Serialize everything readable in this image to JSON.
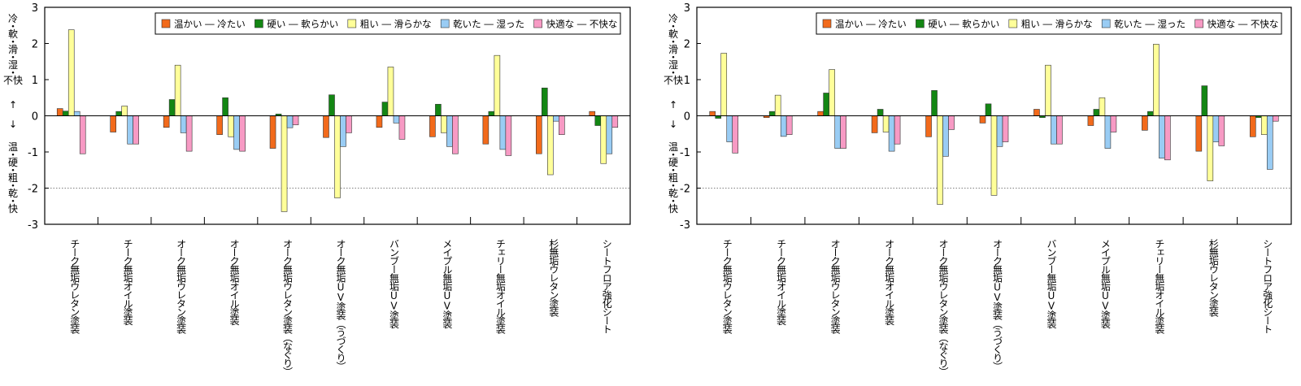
{
  "ylabel_top": [
    "冷",
    "・",
    "軟",
    "・",
    "滑",
    "・",
    "湿",
    "・",
    "不快"
  ],
  "ylabel_mid": [
    "↑",
    "",
    "↓"
  ],
  "ylabel_bottom": [
    "温",
    "・",
    "硬",
    "・",
    "粗",
    "・",
    "乾",
    "・",
    "快"
  ],
  "legend": [
    {
      "label": "温かい ― 冷たい",
      "color": "#f26a1b"
    },
    {
      "label": "硬い ― 軟らかい",
      "color": "#138613"
    },
    {
      "label": "粗い ― 滑らかな",
      "color": "#ffff99"
    },
    {
      "label": "乾いた ― 湿った",
      "color": "#99ccf4"
    },
    {
      "label": "快適な ― 不快な",
      "color": "#f79ac4"
    }
  ],
  "chart_data": [
    {
      "type": "bar",
      "ylim": [
        -3,
        3
      ],
      "yticks": [
        "3",
        "2",
        "1",
        "0",
        "-1",
        "-2",
        "-3"
      ],
      "reference_line": -2,
      "legend_position": "top-right",
      "categories": [
        "チーク無垢ウレタン塗装",
        "チーク無垢オイル塗装",
        "オーク無垢ウレタン塗装",
        "オーク無垢オイル塗装",
        "オーク無垢ウレタン塗装（なぐり）",
        "オーク無垢UV塗装（うづくり）",
        "バンブー無垢UV塗装",
        "メイプル無垢UV塗装",
        "チェリー無垢オイル塗装",
        "杉無垢ウレタン塗装",
        "シートフロア強化シート"
      ],
      "series": [
        {
          "name": "温かい ― 冷たい",
          "values": [
            0.2,
            -0.45,
            -0.32,
            -0.52,
            -0.9,
            -0.6,
            -0.32,
            -0.58,
            -0.78,
            -1.05,
            0.12
          ]
        },
        {
          "name": "硬い ― 軟らかい",
          "values": [
            0.13,
            0.12,
            0.45,
            0.5,
            0.05,
            0.58,
            0.38,
            0.32,
            0.12,
            0.77,
            -0.27
          ]
        },
        {
          "name": "粗い ― 滑らかな",
          "values": [
            2.38,
            0.27,
            1.4,
            -0.58,
            -2.65,
            -2.27,
            1.35,
            -0.47,
            1.67,
            -1.63,
            -1.32
          ]
        },
        {
          "name": "乾いた ― 湿った",
          "values": [
            0.12,
            -0.78,
            -0.47,
            -0.93,
            -0.33,
            -0.85,
            -0.2,
            -0.85,
            -0.93,
            -0.15,
            -1.05
          ]
        },
        {
          "name": "快適な ― 不快な",
          "values": [
            -1.05,
            -0.78,
            -0.98,
            -0.98,
            -0.25,
            -0.47,
            -0.65,
            -1.05,
            -1.1,
            -0.52,
            -0.32
          ]
        }
      ]
    },
    {
      "type": "bar",
      "ylim": [
        -3,
        3
      ],
      "yticks": [
        "3",
        "2",
        "1",
        "0",
        "-1",
        "-2",
        "-3"
      ],
      "reference_line": -2,
      "legend_position": "top-right",
      "categories": [
        "チーク無垢ウレタン塗装",
        "チーク無垢オイル塗装",
        "オーク無垢ウレタン塗装",
        "オーク無垢オイル塗装",
        "オーク無垢ウレタン塗装（なぐり）",
        "オーク無垢UV塗装（うづくり）",
        "バンブー無垢UV塗装",
        "メイプル無垢UV塗装",
        "チェリー無垢オイル塗装",
        "杉無垢ウレタン塗装",
        "シートフロア強化シート"
      ],
      "series": [
        {
          "name": "温かい ― 冷たい",
          "values": [
            0.12,
            -0.05,
            0.12,
            -0.47,
            -0.58,
            -0.2,
            0.18,
            -0.27,
            -0.4,
            -0.98,
            -0.58
          ]
        },
        {
          "name": "硬い ― 軟らかい",
          "values": [
            -0.07,
            0.12,
            0.63,
            0.18,
            0.7,
            0.33,
            -0.05,
            0.18,
            0.12,
            0.83,
            -0.05
          ]
        },
        {
          "name": "粗い ― 滑らかな",
          "values": [
            1.73,
            0.57,
            1.28,
            -0.45,
            -2.45,
            -2.2,
            1.4,
            0.5,
            1.98,
            -1.8,
            -0.52
          ]
        },
        {
          "name": "乾いた ― 湿った",
          "values": [
            -0.72,
            -0.57,
            -0.9,
            -0.98,
            -1.12,
            -0.85,
            -0.78,
            -0.9,
            -1.17,
            -0.72,
            -1.48
          ]
        },
        {
          "name": "快適な ― 不快な",
          "values": [
            -1.03,
            -0.52,
            -0.9,
            -0.78,
            -0.38,
            -0.72,
            -0.78,
            -0.45,
            -1.22,
            -0.83,
            -0.15
          ]
        }
      ]
    }
  ]
}
